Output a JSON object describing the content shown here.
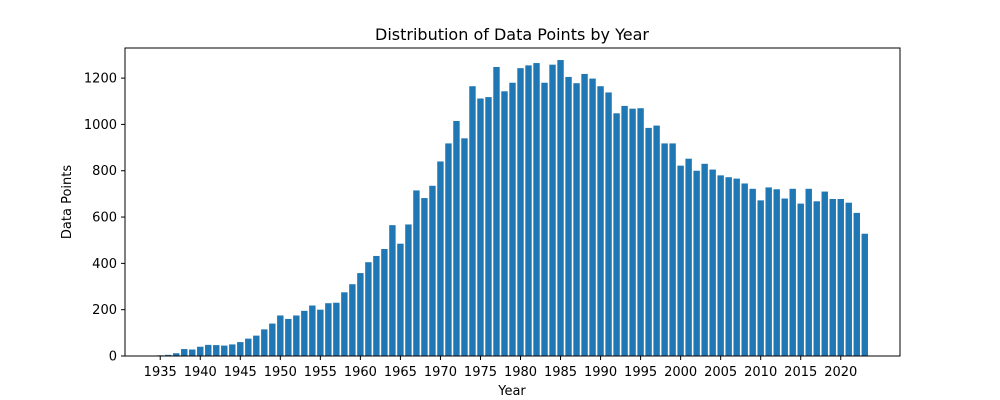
{
  "chart_data": {
    "type": "bar",
    "title": "Distribution of Data Points by Year",
    "xlabel": "Year",
    "ylabel": "Data Points",
    "x": [
      1935,
      1936,
      1937,
      1938,
      1939,
      1940,
      1941,
      1942,
      1943,
      1944,
      1945,
      1946,
      1947,
      1948,
      1949,
      1950,
      1951,
      1952,
      1953,
      1954,
      1955,
      1956,
      1957,
      1958,
      1959,
      1960,
      1961,
      1962,
      1963,
      1964,
      1965,
      1966,
      1967,
      1968,
      1969,
      1970,
      1971,
      1972,
      1973,
      1974,
      1975,
      1976,
      1977,
      1978,
      1979,
      1980,
      1981,
      1982,
      1983,
      1984,
      1985,
      1986,
      1987,
      1988,
      1989,
      1990,
      1991,
      1992,
      1993,
      1994,
      1995,
      1996,
      1997,
      1998,
      1999,
      2000,
      2001,
      2002,
      2003,
      2004,
      2005,
      2006,
      2007,
      2008,
      2009,
      2010,
      2011,
      2012,
      2013,
      2014,
      2015,
      2016,
      2017,
      2018,
      2019,
      2020,
      2021,
      2022,
      2023
    ],
    "values": [
      3,
      5,
      12,
      30,
      28,
      40,
      48,
      47,
      45,
      50,
      60,
      75,
      88,
      115,
      140,
      175,
      160,
      175,
      195,
      218,
      200,
      228,
      230,
      275,
      310,
      358,
      405,
      432,
      462,
      565,
      485,
      568,
      715,
      682,
      735,
      840,
      918,
      1015,
      940,
      1165,
      1112,
      1118,
      1248,
      1143,
      1180,
      1243,
      1255,
      1265,
      1180,
      1258,
      1278,
      1205,
      1178,
      1218,
      1198,
      1165,
      1138,
      1048,
      1080,
      1068,
      1070,
      985,
      995,
      918,
      918,
      822,
      852,
      800,
      830,
      805,
      780,
      772,
      766,
      745,
      722,
      672,
      728,
      720,
      680,
      722,
      658,
      722,
      668,
      710,
      678,
      678,
      662,
      618,
      528
    ],
    "xticks": [
      "1935",
      "1940",
      "1945",
      "1950",
      "1955",
      "1960",
      "1965",
      "1970",
      "1975",
      "1980",
      "1985",
      "1990",
      "1995",
      "2000",
      "2005",
      "2010",
      "2015",
      "2020"
    ],
    "yticks": [
      "0",
      "200",
      "400",
      "600",
      "800",
      "1000",
      "1200"
    ],
    "xlim": [
      1930.6,
      2027.4
    ],
    "ylim": [
      0,
      1330
    ],
    "bar_color": "#1f77b4",
    "grid": false,
    "legend": "none"
  }
}
